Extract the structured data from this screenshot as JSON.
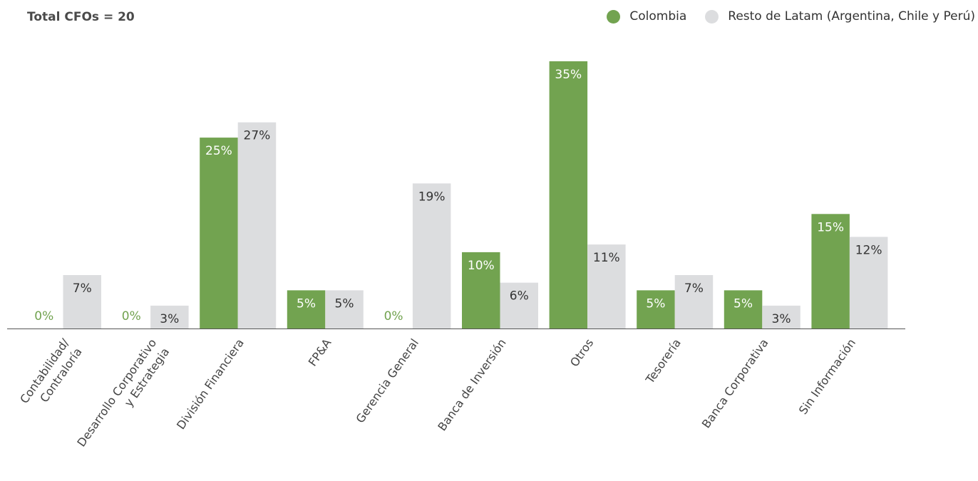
{
  "header": {
    "total_label": "Total CFOs = 20"
  },
  "colors": {
    "colombia": "#72a350",
    "resto": "#dcdddf",
    "zero_label": "#72a350",
    "axis": "#555555"
  },
  "chart_data": {
    "type": "bar",
    "categories": [
      [
        "Contabilidad/",
        "Contraloría"
      ],
      [
        "Desarrollo Corporativo",
        "y Estrategia"
      ],
      [
        "División Financiera"
      ],
      [
        "FP&A"
      ],
      [
        "Gerencia General"
      ],
      [
        "Banca de Inversión"
      ],
      [
        "Otros"
      ],
      [
        "Tesorería"
      ],
      [
        "Banca Corporativa"
      ],
      [
        "Sin Información"
      ]
    ],
    "series": [
      {
        "name": "Colombia",
        "values": [
          0,
          0,
          25,
          5,
          0,
          10,
          35,
          5,
          5,
          15
        ],
        "labels": [
          "0%",
          "0%",
          "25%",
          "5%",
          "0%",
          "10%",
          "35%",
          "5%",
          "5%",
          "15%"
        ]
      },
      {
        "name": "Resto de Latam (Argentina, Chile y Perú)",
        "values": [
          7,
          3,
          27,
          5,
          19,
          6,
          11,
          7,
          3,
          12
        ],
        "labels": [
          "7%",
          "3%",
          "27%",
          "5%",
          "19%",
          "6%",
          "11%",
          "7%",
          "3%",
          "12%"
        ]
      }
    ],
    "ylim": [
      0,
      35
    ],
    "legend_position": "top-right",
    "grid": false
  }
}
